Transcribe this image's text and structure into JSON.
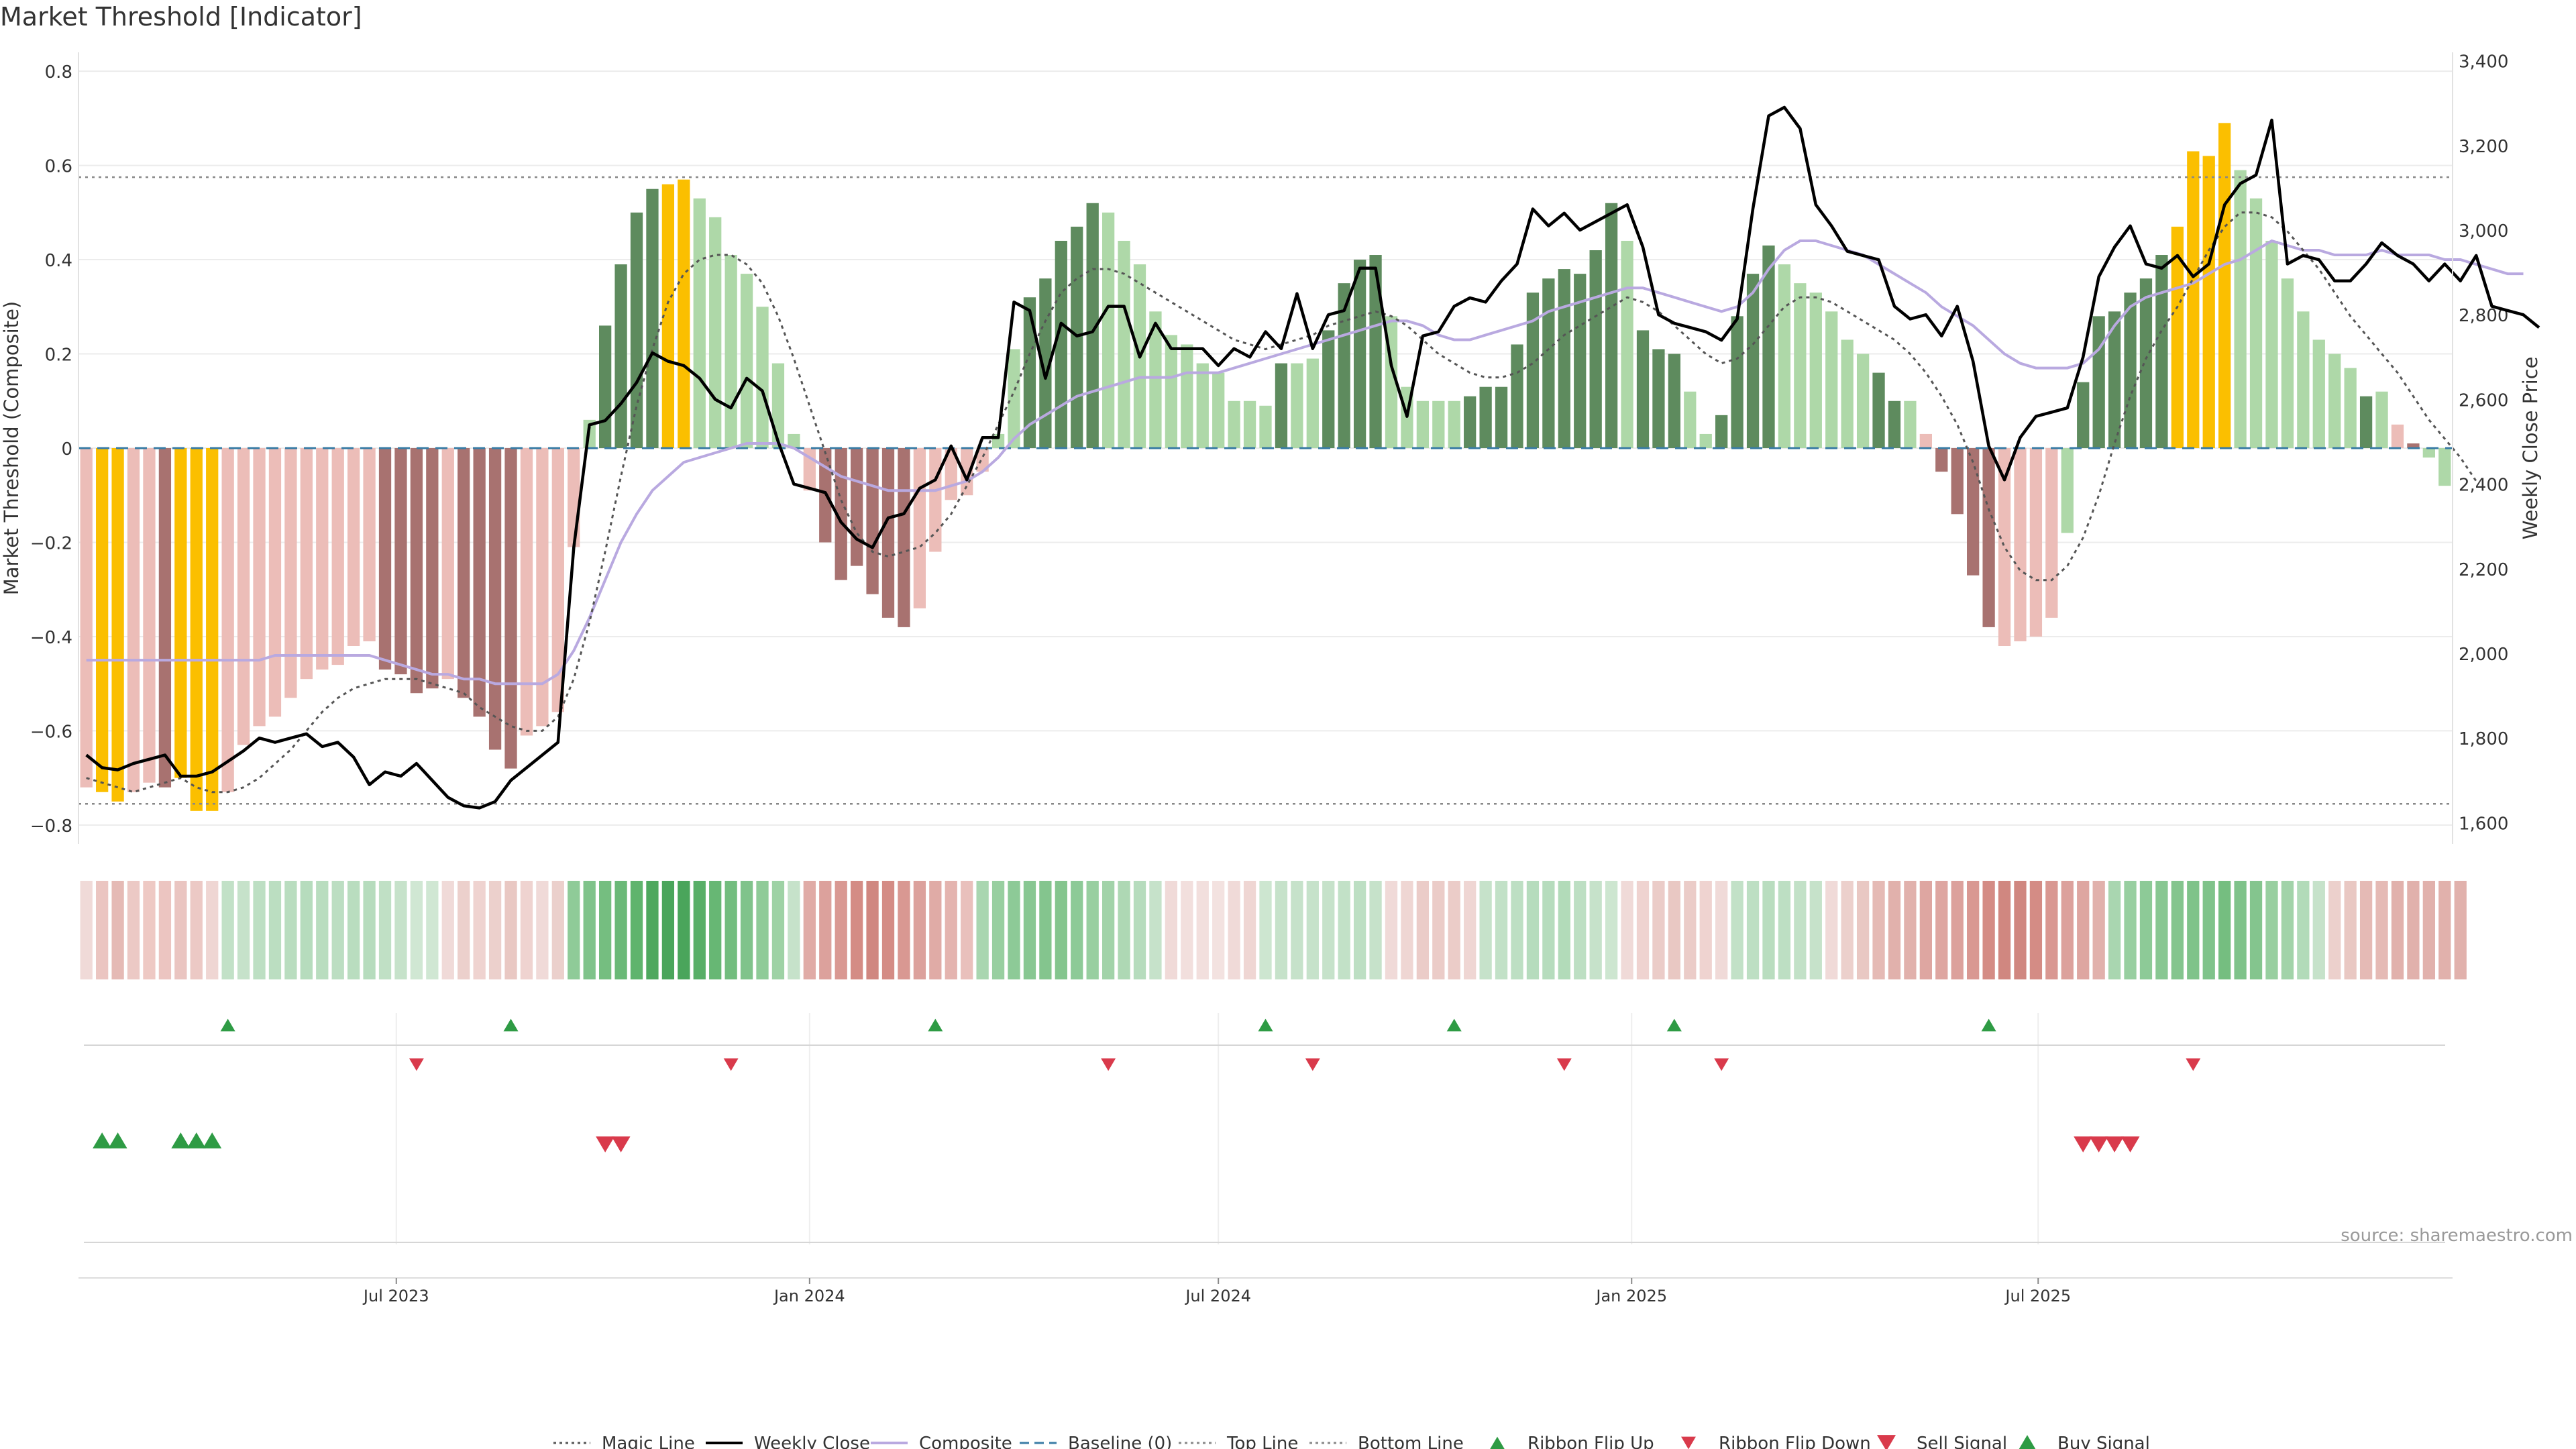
{
  "title": "Market Threshold [Indicator]",
  "source": "source: sharemaestro.com",
  "colors": {
    "gold": "#fbbf00",
    "dark_green": "#5e8b5e",
    "light_green": "#aed8a8",
    "dark_red": "#a87270",
    "light_red": "#ecbdb8",
    "weekly_close": "#000000",
    "composite": "#b9a9e0",
    "magic": "#555555",
    "baseline": "#3a7ca5",
    "buy": "#2e9b44",
    "sell": "#d93a4b"
  },
  "chart_data": {
    "type": "bar",
    "title": "Market Threshold [Indicator]",
    "ylabel": "Market Threshold (Composite)",
    "y2label": "Weekly Close Price",
    "ylim": [
      -0.84,
      0.84
    ],
    "y2lim": [
      1550,
      3420
    ],
    "yticks": [
      "0.8",
      "0.6",
      "0.4",
      "0.2",
      "0",
      "−0.2",
      "−0.4",
      "−0.6",
      "−0.8"
    ],
    "y2ticks": [
      "3,400",
      "3,200",
      "3,000",
      "2,800",
      "2,600",
      "2,400",
      "2,200",
      "2,000",
      "1,800",
      "1,600"
    ],
    "x_start": "2023-02-13",
    "x_step_days": 7,
    "xtick_labels": [
      {
        "label": "Jul 2023",
        "date": "2023-07-01"
      },
      {
        "label": "Jan 2024",
        "date": "2024-01-01"
      },
      {
        "label": "Jul 2024",
        "date": "2024-07-01"
      },
      {
        "label": "Jan 2025",
        "date": "2025-01-01"
      },
      {
        "label": "Jul 2025",
        "date": "2025-07-01"
      }
    ],
    "top_line": 0.575,
    "bottom_line": -0.755,
    "baseline": 0,
    "threshold": [
      -0.72,
      -0.73,
      -0.75,
      -0.73,
      -0.71,
      -0.72,
      -0.7,
      -0.77,
      -0.77,
      -0.73,
      -0.63,
      -0.59,
      -0.57,
      -0.53,
      -0.49,
      -0.47,
      -0.46,
      -0.42,
      -0.41,
      -0.47,
      -0.48,
      -0.52,
      -0.51,
      -0.49,
      -0.53,
      -0.57,
      -0.64,
      -0.68,
      -0.61,
      -0.59,
      -0.56,
      -0.21,
      0.06,
      0.26,
      0.39,
      0.5,
      0.55,
      0.56,
      0.57,
      0.53,
      0.49,
      0.41,
      0.37,
      0.3,
      0.18,
      0.03,
      -0.09,
      -0.2,
      -0.28,
      -0.25,
      -0.31,
      -0.36,
      -0.38,
      -0.34,
      -0.22,
      -0.11,
      -0.1,
      -0.05,
      0.03,
      0.21,
      0.32,
      0.36,
      0.44,
      0.47,
      0.52,
      0.5,
      0.44,
      0.39,
      0.29,
      0.24,
      0.22,
      0.18,
      0.16,
      0.1,
      0.1,
      0.09,
      0.18,
      0.18,
      0.19,
      0.25,
      0.35,
      0.4,
      0.41,
      0.28,
      0.13,
      0.1,
      0.1,
      0.1,
      0.11,
      0.13,
      0.13,
      0.22,
      0.33,
      0.36,
      0.38,
      0.37,
      0.42,
      0.52,
      0.44,
      0.25,
      0.21,
      0.2,
      0.12,
      0.03,
      0.07,
      0.28,
      0.37,
      0.43,
      0.39,
      0.35,
      0.33,
      0.29,
      0.23,
      0.2,
      0.16,
      0.1,
      0.1,
      0.03,
      -0.05,
      -0.14,
      -0.27,
      -0.38,
      -0.42,
      -0.41,
      -0.4,
      -0.36,
      -0.18,
      0.14,
      0.28,
      0.29,
      0.33,
      0.36,
      0.41,
      0.47,
      0.63,
      0.62,
      0.69,
      0.59,
      0.53,
      0.44,
      0.36,
      0.29,
      0.23,
      0.2,
      0.17,
      0.11,
      0.12,
      0.05,
      0.01,
      -0.02,
      -0.08
    ],
    "bar_kind": [
      "lr",
      "g",
      "g",
      "lr",
      "lr",
      "dr",
      "g",
      "g",
      "g",
      "lr",
      "lr",
      "lr",
      "lr",
      "lr",
      "lr",
      "lr",
      "lr",
      "lr",
      "lr",
      "dr",
      "dr",
      "dr",
      "dr",
      "lr",
      "dr",
      "dr",
      "dr",
      "dr",
      "lr",
      "lr",
      "lr",
      "lr",
      "lg",
      "dg",
      "dg",
      "dg",
      "dg",
      "g",
      "g",
      "lg",
      "lg",
      "lg",
      "lg",
      "lg",
      "lg",
      "lg",
      "lr",
      "dr",
      "dr",
      "dr",
      "dr",
      "dr",
      "dr",
      "lr",
      "lr",
      "lr",
      "lr",
      "lr",
      "lg",
      "lg",
      "dg",
      "dg",
      "dg",
      "dg",
      "dg",
      "lg",
      "lg",
      "lg",
      "lg",
      "lg",
      "lg",
      "lg",
      "lg",
      "lg",
      "lg",
      "lg",
      "dg",
      "lg",
      "lg",
      "dg",
      "dg",
      "dg",
      "dg",
      "lg",
      "lg",
      "lg",
      "lg",
      "lg",
      "dg",
      "dg",
      "dg",
      "dg",
      "dg",
      "dg",
      "dg",
      "dg",
      "dg",
      "dg",
      "lg",
      "dg",
      "dg",
      "dg",
      "lg",
      "lg",
      "dg",
      "dg",
      "dg",
      "dg",
      "lg",
      "lg",
      "lg",
      "lg",
      "lg",
      "lg",
      "dg",
      "dg",
      "lg",
      "lr",
      "dr",
      "dr",
      "dr",
      "dr",
      "lr",
      "lr",
      "lr",
      "lr",
      "lg",
      "dg",
      "dg",
      "dg",
      "dg",
      "dg",
      "dg",
      "g",
      "g",
      "g",
      "g",
      "lg",
      "lg",
      "lg",
      "lg",
      "lg",
      "lg",
      "lg",
      "lg",
      "dg",
      "lg",
      "lr",
      "dr"
    ],
    "weekly_close": [
      1760,
      1730,
      1725,
      1740,
      1750,
      1760,
      1710,
      1710,
      1720,
      1745,
      1770,
      1800,
      1790,
      1800,
      1810,
      1780,
      1790,
      1755,
      1690,
      1720,
      1710,
      1740,
      1700,
      1660,
      1640,
      1635,
      1650,
      1700,
      1730,
      1760,
      1790,
      2250,
      2540,
      2550,
      2590,
      2640,
      2710,
      2690,
      2680,
      2650,
      2600,
      2580,
      2650,
      2620,
      2500,
      2400,
      2390,
      2380,
      2310,
      2270,
      2250,
      2320,
      2330,
      2390,
      2410,
      2490,
      2410,
      2510,
      2510,
      2830,
      2810,
      2650,
      2780,
      2750,
      2760,
      2820,
      2820,
      2700,
      2780,
      2720,
      2720,
      2720,
      2680,
      2720,
      2700,
      2760,
      2720,
      2850,
      2720,
      2800,
      2810,
      2910,
      2910,
      2680,
      2560,
      2750,
      2760,
      2820,
      2840,
      2830,
      2880,
      2920,
      3050,
      3010,
      3040,
      3000,
      3020,
      3040,
      3060,
      2960,
      2800,
      2780,
      2770,
      2760,
      2740,
      2790,
      3050,
      3270,
      3290,
      3240,
      3060,
      3010,
      2950,
      2940,
      2930,
      2820,
      2790,
      2800,
      2750,
      2820,
      2690,
      2490,
      2410,
      2510,
      2560,
      2570,
      2580,
      2700,
      2890,
      2960,
      3010,
      2920,
      2910,
      2940,
      2890,
      2920,
      3060,
      3110,
      3130,
      3260,
      2920,
      2940,
      2930,
      2880,
      2880,
      2920,
      2970,
      2940,
      2920,
      2880,
      2920,
      2880,
      2940,
      2820,
      2810,
      2800,
      2770
    ],
    "composite": [
      -0.45,
      -0.45,
      -0.45,
      -0.45,
      -0.45,
      -0.45,
      -0.45,
      -0.45,
      -0.45,
      -0.45,
      -0.45,
      -0.45,
      -0.44,
      -0.44,
      -0.44,
      -0.44,
      -0.44,
      -0.44,
      -0.44,
      -0.45,
      -0.46,
      -0.47,
      -0.48,
      -0.48,
      -0.49,
      -0.49,
      -0.5,
      -0.5,
      -0.5,
      -0.5,
      -0.48,
      -0.43,
      -0.36,
      -0.28,
      -0.2,
      -0.14,
      -0.09,
      -0.06,
      -0.03,
      -0.02,
      -0.01,
      0,
      0.01,
      0.01,
      0.01,
      0,
      -0.02,
      -0.04,
      -0.06,
      -0.07,
      -0.08,
      -0.09,
      -0.09,
      -0.09,
      -0.09,
      -0.08,
      -0.07,
      -0.05,
      -0.02,
      0.02,
      0.05,
      0.07,
      0.09,
      0.11,
      0.12,
      0.13,
      0.14,
      0.15,
      0.15,
      0.15,
      0.16,
      0.16,
      0.16,
      0.17,
      0.18,
      0.19,
      0.2,
      0.21,
      0.22,
      0.23,
      0.24,
      0.25,
      0.26,
      0.27,
      0.27,
      0.26,
      0.24,
      0.23,
      0.23,
      0.24,
      0.25,
      0.26,
      0.27,
      0.29,
      0.3,
      0.31,
      0.32,
      0.33,
      0.34,
      0.34,
      0.33,
      0.32,
      0.31,
      0.3,
      0.29,
      0.3,
      0.33,
      0.38,
      0.42,
      0.44,
      0.44,
      0.43,
      0.42,
      0.41,
      0.39,
      0.37,
      0.35,
      0.33,
      0.3,
      0.28,
      0.26,
      0.23,
      0.2,
      0.18,
      0.17,
      0.17,
      0.17,
      0.18,
      0.21,
      0.26,
      0.3,
      0.32,
      0.33,
      0.34,
      0.35,
      0.37,
      0.39,
      0.4,
      0.42,
      0.44,
      0.43,
      0.42,
      0.42,
      0.41,
      0.41,
      0.41,
      0.42,
      0.41,
      0.41,
      0.41,
      0.4,
      0.4,
      0.39,
      0.38,
      0.37,
      0.37
    ],
    "magic_line": [
      -0.7,
      -0.71,
      -0.72,
      -0.73,
      -0.72,
      -0.71,
      -0.7,
      -0.72,
      -0.73,
      -0.73,
      -0.72,
      -0.7,
      -0.67,
      -0.64,
      -0.6,
      -0.56,
      -0.53,
      -0.51,
      -0.5,
      -0.49,
      -0.49,
      -0.49,
      -0.5,
      -0.51,
      -0.52,
      -0.55,
      -0.57,
      -0.59,
      -0.6,
      -0.6,
      -0.57,
      -0.49,
      -0.37,
      -0.22,
      -0.06,
      0.09,
      0.21,
      0.31,
      0.37,
      0.4,
      0.41,
      0.41,
      0.39,
      0.35,
      0.28,
      0.19,
      0.09,
      -0.01,
      -0.11,
      -0.18,
      -0.22,
      -0.23,
      -0.22,
      -0.21,
      -0.18,
      -0.14,
      -0.08,
      -0.02,
      0.05,
      0.12,
      0.2,
      0.27,
      0.33,
      0.36,
      0.38,
      0.38,
      0.37,
      0.35,
      0.33,
      0.31,
      0.29,
      0.27,
      0.25,
      0.23,
      0.22,
      0.21,
      0.22,
      0.23,
      0.24,
      0.26,
      0.27,
      0.28,
      0.29,
      0.28,
      0.26,
      0.23,
      0.2,
      0.18,
      0.16,
      0.15,
      0.15,
      0.16,
      0.18,
      0.21,
      0.24,
      0.26,
      0.28,
      0.3,
      0.32,
      0.31,
      0.29,
      0.26,
      0.23,
      0.2,
      0.18,
      0.19,
      0.22,
      0.26,
      0.3,
      0.32,
      0.32,
      0.31,
      0.29,
      0.27,
      0.25,
      0.23,
      0.2,
      0.16,
      0.11,
      0.05,
      -0.03,
      -0.13,
      -0.21,
      -0.26,
      -0.28,
      -0.28,
      -0.25,
      -0.19,
      -0.1,
      0.01,
      0.11,
      0.19,
      0.25,
      0.3,
      0.36,
      0.42,
      0.47,
      0.5,
      0.5,
      0.49,
      0.46,
      0.42,
      0.38,
      0.33,
      0.28,
      0.24,
      0.2,
      0.16,
      0.11,
      0.06,
      0.02,
      -0.02,
      -0.07
    ],
    "ribbon_colors": [
      "#f0dad8",
      "#ebc5c1",
      "#e5bab5",
      "#ecc9c5",
      "#eec9c4",
      "#ecc5c1",
      "#eac5c1",
      "#ecc9c5",
      "#efd6d3",
      "#c2e1c7",
      "#c6e2ca",
      "#bddfc3",
      "#bbdec1",
      "#b9ddbf",
      "#b6dcbd",
      "#b9ddbf",
      "#bcdec2",
      "#b9ddbf",
      "#b6dcbd",
      "#c0e0c5",
      "#c6e2ca",
      "#d0e7d3",
      "#d0e7d3",
      "#f0dad8",
      "#ecd0cc",
      "#efd3d0",
      "#ecd0cc",
      "#e9c8c3",
      "#efd3d0",
      "#f0dad8",
      "#ebd0cc",
      "#8fcb98",
      "#7fc38a",
      "#75be80",
      "#6ab977",
      "#5fb46d",
      "#4ea85e",
      "#4aa55b",
      "#4aa55b",
      "#58af67",
      "#67b774",
      "#72bd7e",
      "#80c38b",
      "#8fcb98",
      "#9ed2a5",
      "#c6e2ca",
      "#e0aba6",
      "#dca19c",
      "#d99892",
      "#d48c85",
      "#d08780",
      "#d48c85",
      "#d99892",
      "#dca19c",
      "#e0aba6",
      "#e4b4af",
      "#e9c0bc",
      "#a9d6b0",
      "#98cfa0",
      "#8dca97",
      "#88c792",
      "#84c58e",
      "#84c58e",
      "#8dca97",
      "#98cfa0",
      "#a2d3a9",
      "#aed8b4",
      "#b6dcbd",
      "#c6e2ca",
      "#f0dad8",
      "#f2dfdd",
      "#f2dfdd",
      "#f3e2e0",
      "#f0dad8",
      "#efd6d3",
      "#cde6d0",
      "#c6e2ca",
      "#c6e2ca",
      "#c6e2ca",
      "#c6e2ca",
      "#c2e1c7",
      "#bddfc3",
      "#c6e2ca",
      "#f0dad8",
      "#efd6d3",
      "#ebccc8",
      "#ebccc8",
      "#ebccc8",
      "#efd6d3",
      "#c6e2ca",
      "#c2e1c7",
      "#bddfc3",
      "#b6dcbd",
      "#b6dcbd",
      "#b2dbb9",
      "#bddfc3",
      "#c6e2ca",
      "#cde6d0",
      "#f0dad8",
      "#efd3d0",
      "#ebccc8",
      "#e9c8c3",
      "#ebccc8",
      "#efd3d0",
      "#f0dad8",
      "#c2e1c7",
      "#bddfc3",
      "#b9ddbf",
      "#bddfc3",
      "#c2e1c7",
      "#c6e2ca",
      "#f0dad8",
      "#ecd0cc",
      "#e9c8c3",
      "#e5bab5",
      "#e1b1ac",
      "#e1b1ac",
      "#dea6a1",
      "#dea6a1",
      "#dca19c",
      "#d99892",
      "#d48c85",
      "#d08780",
      "#d08780",
      "#d48c85",
      "#d99892",
      "#dca19c",
      "#dea6a1",
      "#e1b1ac",
      "#a9d6b0",
      "#98cfa0",
      "#8dca97",
      "#88c792",
      "#84c58e",
      "#7fc38a",
      "#7fc38a",
      "#75be80",
      "#7fc38a",
      "#84c58e",
      "#98cfa0",
      "#a2d3a9",
      "#b2dbb9",
      "#c6e2ca",
      "#ecd0cc",
      "#e9c8c3",
      "#e5bab5",
      "#e5bab5",
      "#e1b1ac",
      "#e1b1ac",
      "#e1b1ac",
      "#e1b1ac",
      "#e1b1ac"
    ],
    "ribbon_flip_up_weeks": [
      9,
      27,
      54,
      75,
      87,
      101,
      121
    ],
    "ribbon_flip_down_weeks": [
      21,
      41,
      65,
      78,
      94,
      104,
      134
    ],
    "buy_signal_weeks": [
      1,
      2,
      6,
      7,
      8
    ],
    "sell_signal_weeks": [
      33,
      34,
      127,
      128,
      129,
      130
    ]
  },
  "legend": [
    {
      "label": "Magic Line",
      "kind": "dotted-line",
      "color": "#555555"
    },
    {
      "label": "Weekly Close",
      "kind": "solid-line",
      "color": "#000000"
    },
    {
      "label": "Composite",
      "kind": "solid-line",
      "color": "#b9a9e0"
    },
    {
      "label": "Baseline (0)",
      "kind": "dashed-line",
      "color": "#3a7ca5"
    },
    {
      "label": "Top Line",
      "kind": "dotted-line",
      "color": "#888888"
    },
    {
      "label": "Bottom Line",
      "kind": "dotted-line",
      "color": "#888888"
    },
    {
      "label": "Ribbon Flip Up",
      "kind": "tri-up-small",
      "color": "#2e9b44"
    },
    {
      "label": "Ribbon Flip Down",
      "kind": "tri-down-small",
      "color": "#d93a4b"
    },
    {
      "label": "Sell Signal",
      "kind": "tri-down",
      "color": "#d93a4b"
    },
    {
      "label": "Buy Signal",
      "kind": "tri-up",
      "color": "#2e9b44"
    }
  ]
}
